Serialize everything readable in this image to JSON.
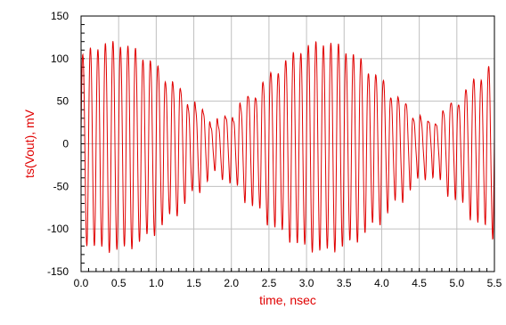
{
  "chart_data": {
    "type": "line",
    "title": "",
    "xlabel": "time, nsec",
    "ylabel": "ts(Vout), mV",
    "xlim": [
      0.0,
      5.5
    ],
    "ylim": [
      -150,
      150
    ],
    "x_ticks": [
      0.0,
      0.5,
      1.0,
      1.5,
      2.0,
      2.5,
      3.0,
      3.5,
      4.0,
      4.5,
      5.0,
      5.5
    ],
    "x_tick_labels": [
      "0.0",
      "0.5",
      "1.0",
      "1.5",
      "2.0",
      "2.5",
      "3.0",
      "3.5",
      "4.0",
      "4.5",
      "5.0",
      "5.5"
    ],
    "y_ticks": [
      -150,
      -100,
      -50,
      0,
      50,
      100,
      150
    ],
    "y_tick_labels": [
      "-150",
      "-100",
      "-50",
      "0",
      "50",
      "100",
      "150"
    ],
    "grid": true,
    "minor_ticks": true,
    "series": [
      {
        "color": "#e00000",
        "signal": {
          "kind": "amplitude-modulated oscillation with intermodulation ripple",
          "carrier_period_ns": 0.1,
          "envelope_period_ns": 2.8,
          "envelope_peak_times_ns": [
            0.42,
            3.22
          ],
          "envelope_null_times_ns": [
            1.82,
            4.62
          ],
          "peak_amplitude_mV": 128,
          "null_amplitude_mV": 35,
          "x_start_ns": 0.0,
          "x_end_ns": 5.5,
          "sample_step_ns": 0.004
        }
      }
    ]
  },
  "colors": {
    "axis_label": "#e00000",
    "trace": "#e00000",
    "grid": "#c0c0c0",
    "frame": "#000000"
  }
}
